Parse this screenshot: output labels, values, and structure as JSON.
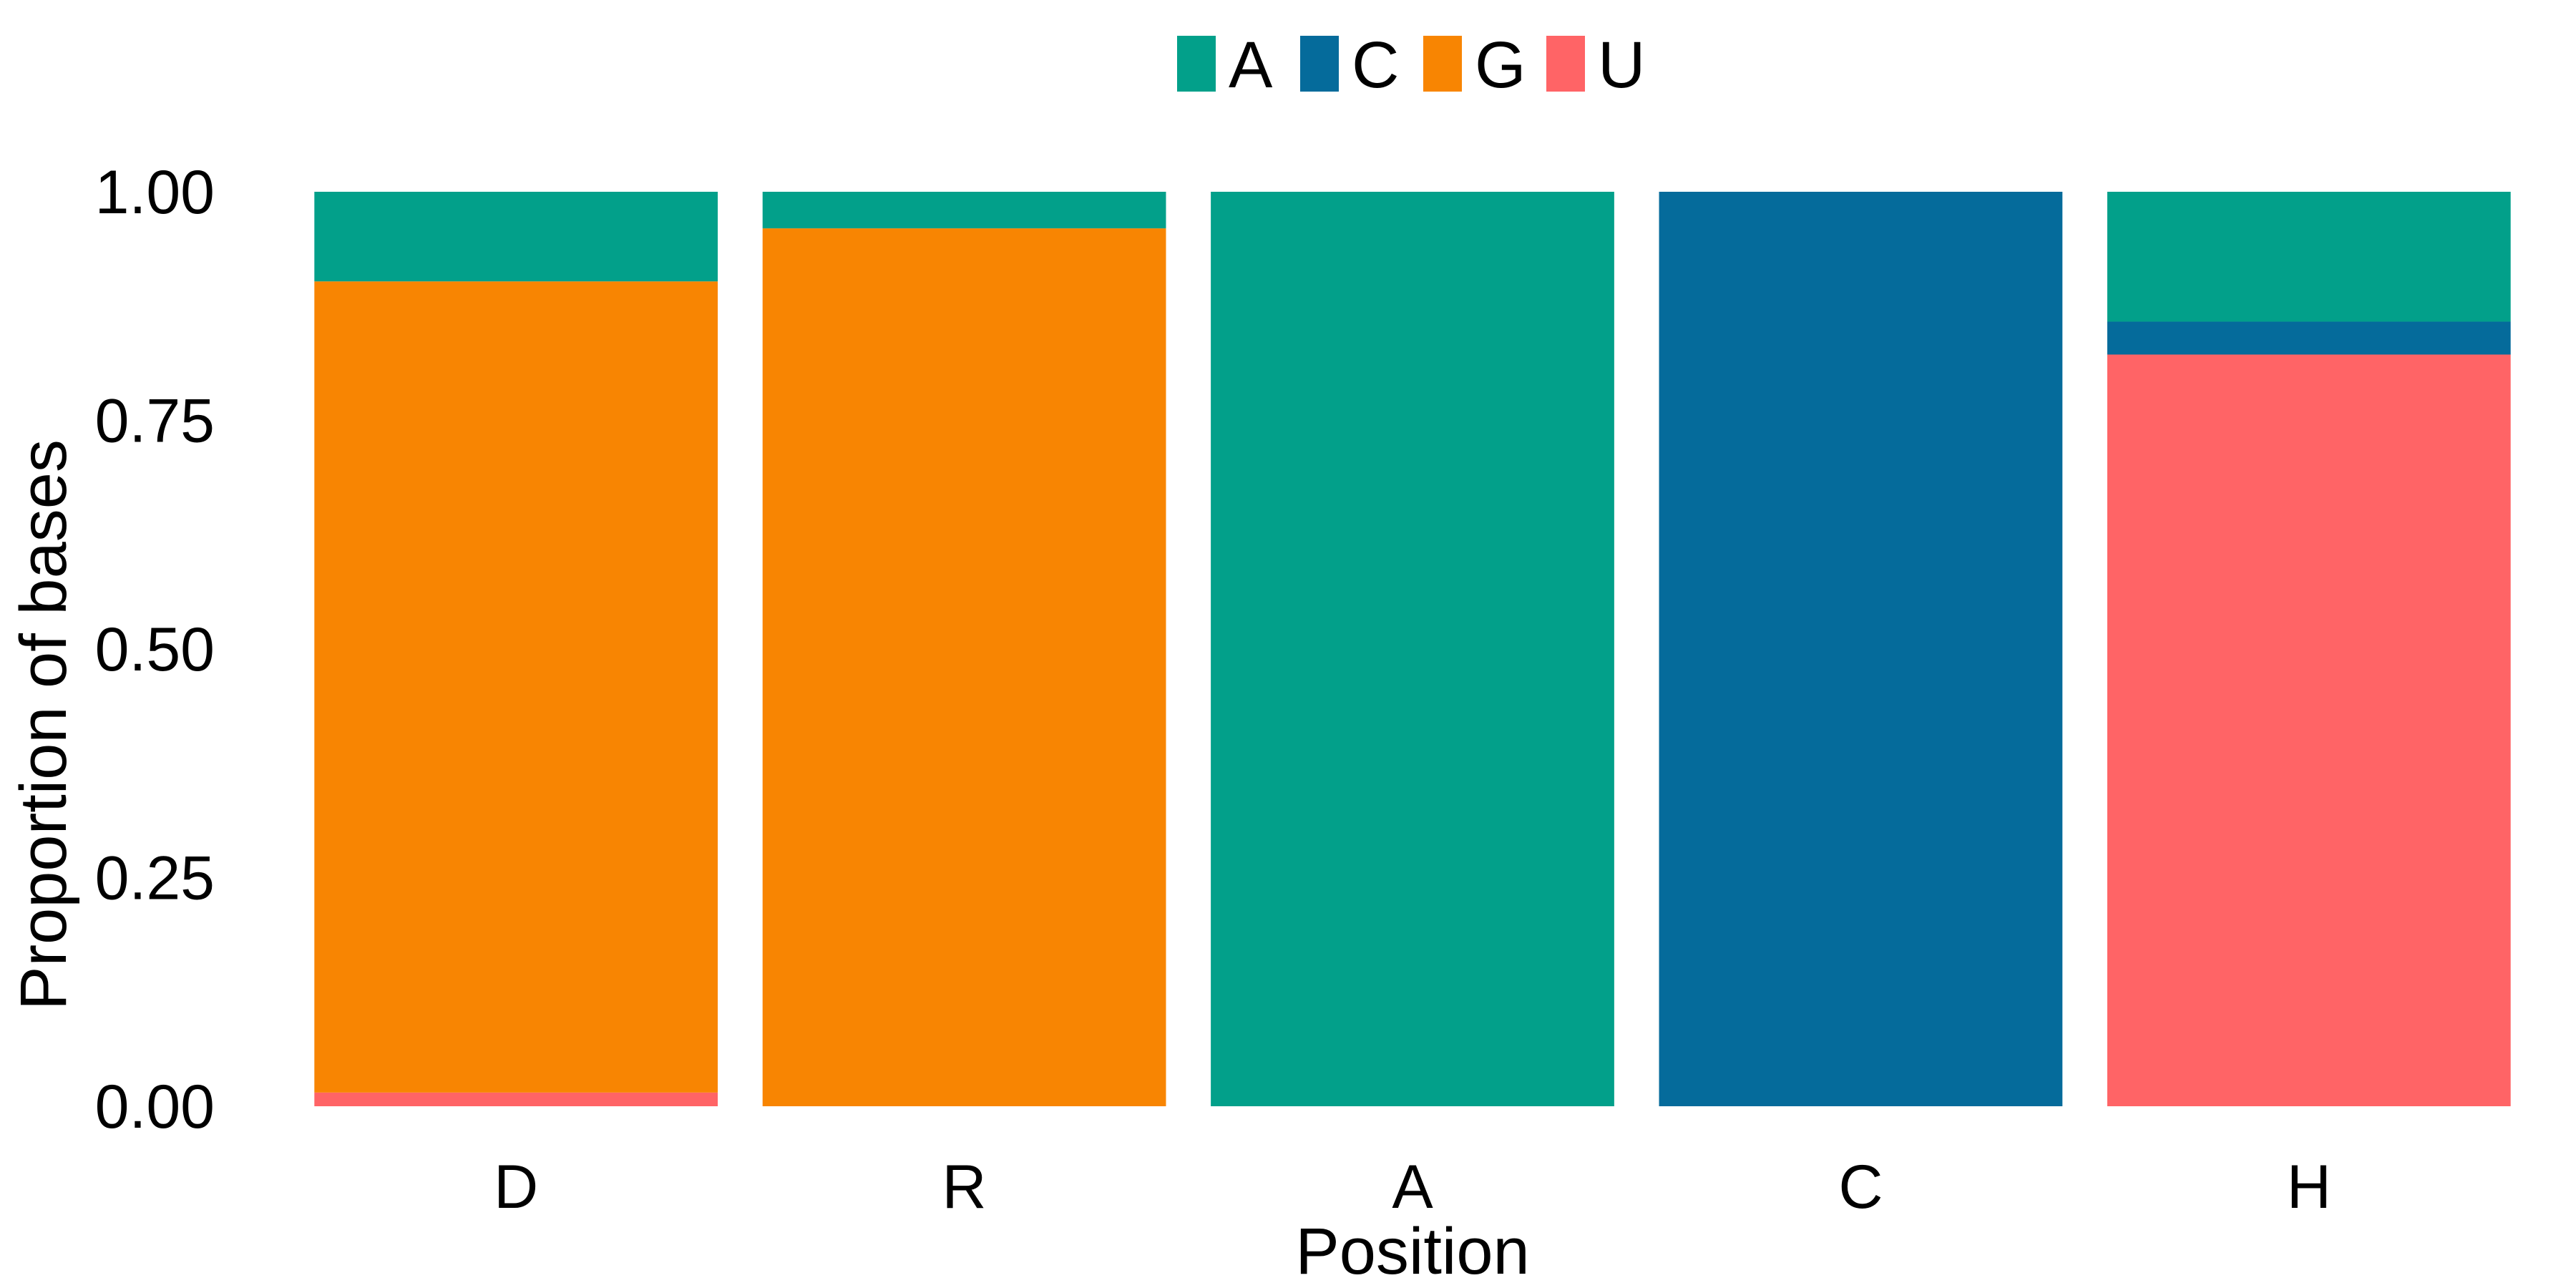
{
  "chart_data": {
    "type": "bar",
    "stacked": true,
    "categories": [
      "D",
      "R",
      "A",
      "C",
      "H"
    ],
    "series": [
      {
        "name": "U",
        "color": "#FF6466",
        "values": [
          0.015,
          0.0,
          0.0,
          0.0,
          0.822
        ]
      },
      {
        "name": "G",
        "color": "#F88502",
        "values": [
          0.887,
          0.96,
          0.0,
          0.0,
          0.0
        ]
      },
      {
        "name": "C",
        "color": "#056B9B",
        "values": [
          0.0,
          0.0,
          0.0,
          1.0,
          0.036
        ]
      },
      {
        "name": "A",
        "color": "#02A08A",
        "values": [
          0.098,
          0.04,
          1.0,
          0.0,
          0.142
        ]
      }
    ],
    "legend_order": [
      "A",
      "C",
      "G",
      "U"
    ],
    "legend_position": "top",
    "xlabel": "Position",
    "ylabel": "Proportion of bases",
    "ylim": [
      0,
      1
    ],
    "yticks": [
      "0.00",
      "0.25",
      "0.50",
      "0.75",
      "1.00"
    ],
    "grid": false
  }
}
